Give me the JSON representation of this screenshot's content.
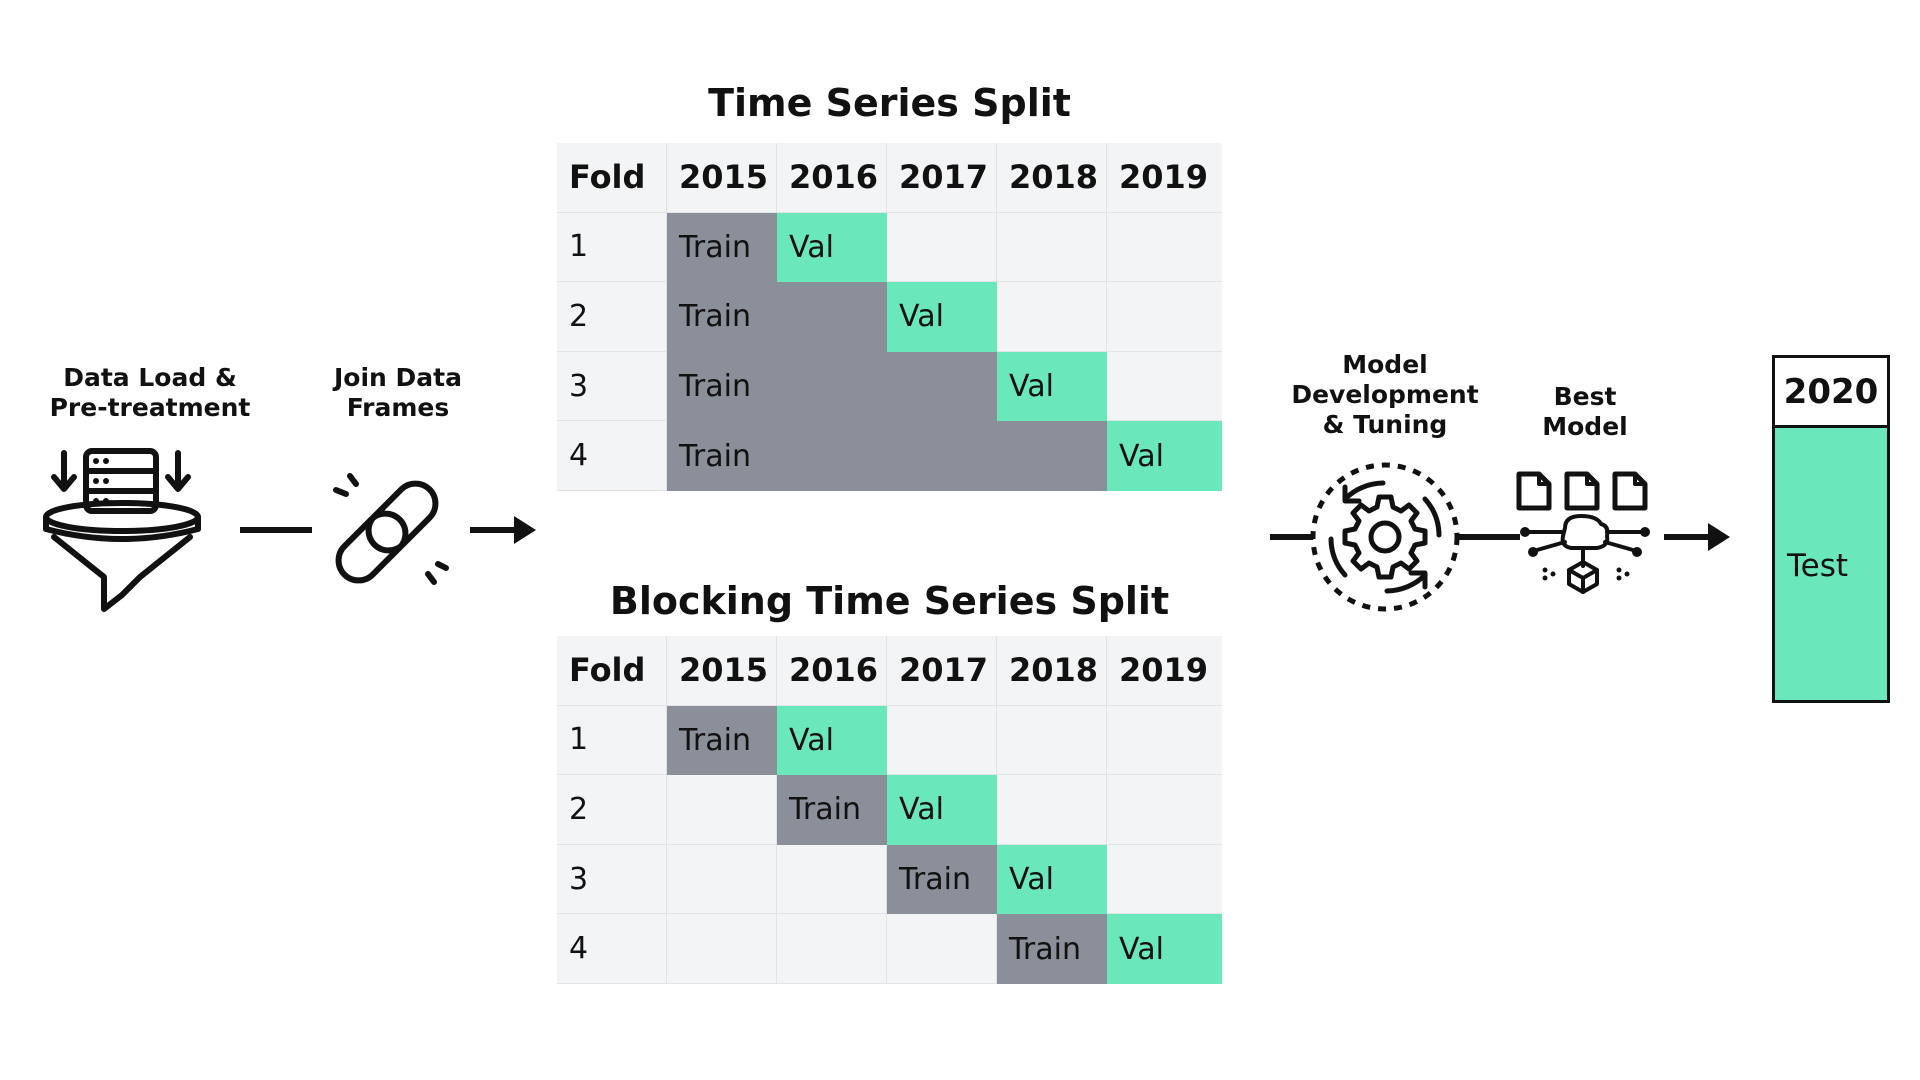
{
  "steps": {
    "data_load": "Data Load &\nPre-treatment",
    "join": "Join Data\nFrames",
    "model_dev": "Model\nDevelopment\n& Tuning",
    "best_model": "Best Model"
  },
  "time_series_split": {
    "title": "Time Series Split",
    "header": [
      "Fold",
      "2015",
      "2016",
      "2017",
      "2018",
      "2019"
    ],
    "folds": [
      {
        "fold": "1",
        "train_label": "Train",
        "val_label": "Val",
        "train_start": 1,
        "train_end": 1,
        "val_col": 2
      },
      {
        "fold": "2",
        "train_label": "Train",
        "val_label": "Val",
        "train_start": 1,
        "train_end": 2,
        "val_col": 3
      },
      {
        "fold": "3",
        "train_label": "Train",
        "val_label": "Val",
        "train_start": 1,
        "train_end": 3,
        "val_col": 4
      },
      {
        "fold": "4",
        "train_label": "Train",
        "val_label": "Val",
        "train_start": 1,
        "train_end": 4,
        "val_col": 5
      }
    ]
  },
  "blocking_time_series_split": {
    "title": "Blocking Time Series Split",
    "header": [
      "Fold",
      "2015",
      "2016",
      "2017",
      "2018",
      "2019"
    ],
    "folds": [
      {
        "fold": "1",
        "train_label": "Train",
        "val_label": "Val",
        "train_start": 1,
        "train_end": 1,
        "val_col": 2
      },
      {
        "fold": "2",
        "train_label": "Train",
        "val_label": "Val",
        "train_start": 2,
        "train_end": 2,
        "val_col": 3
      },
      {
        "fold": "3",
        "train_label": "Train",
        "val_label": "Val",
        "train_start": 3,
        "train_end": 3,
        "val_col": 4
      },
      {
        "fold": "4",
        "train_label": "Train",
        "val_label": "Val",
        "train_start": 4,
        "train_end": 4,
        "val_col": 5
      }
    ]
  },
  "test": {
    "year": "2020",
    "label": "Test"
  },
  "colors": {
    "train": "#8a8f99",
    "val": "#6ae8bb",
    "table_bg": "#f3f4f5",
    "ink": "#111111"
  },
  "icons": {
    "data_load": "funnel-database-icon",
    "join": "chain-link-icon",
    "model_dev": "gear-cycle-icon",
    "best_model": "documents-network-icon"
  }
}
